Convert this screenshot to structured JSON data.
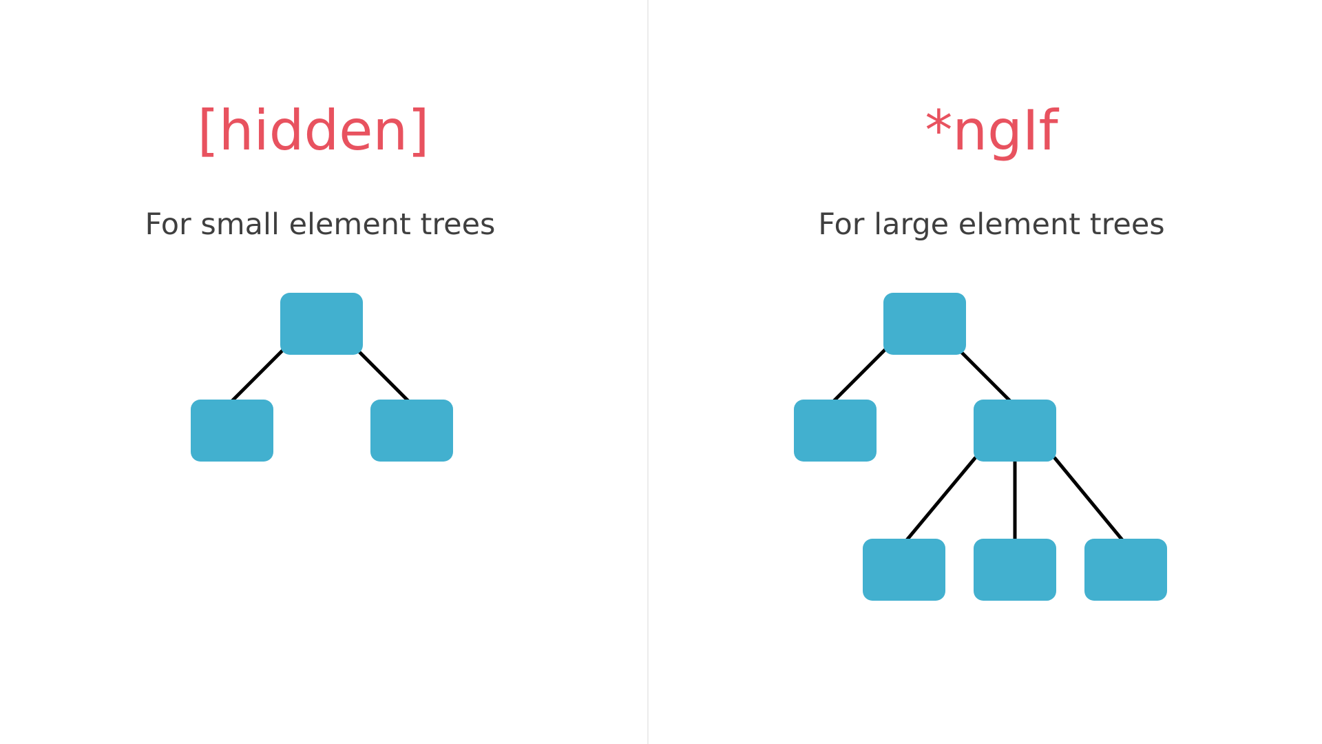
{
  "colors": {
    "title": "#e8525f",
    "subtitle": "#3f3f3f",
    "node": "#42b0cf",
    "edge": "#000000",
    "divider": "#ececec"
  },
  "left": {
    "title": "[hidden]",
    "subtitle": "For small element trees"
  },
  "right": {
    "title": "*ngIf",
    "subtitle": "For large element trees"
  }
}
